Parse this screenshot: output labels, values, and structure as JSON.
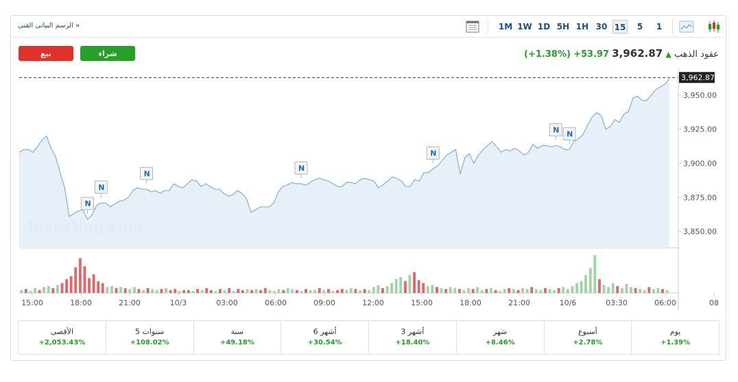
{
  "toolbar": {
    "tech_chart_link": "الرسم البيانى الفنى",
    "timeframes": [
      "1",
      "5",
      "15",
      "30",
      "1H",
      "5H",
      "1D",
      "1W",
      "1M"
    ],
    "active_timeframe": "15",
    "icons": [
      "candlestick-icon",
      "area-chart-icon",
      "table-icon"
    ]
  },
  "actions": {
    "sell_label": "بيع",
    "buy_label": "شراء"
  },
  "quote": {
    "name": "عقود الذهب",
    "direction": "up",
    "price": "3,962.87",
    "change": "+53.97",
    "change_pct": "(+1.38%)"
  },
  "colors": {
    "up": "#26a128",
    "down": "#e0312b",
    "accent": "#1a4f8a",
    "line": "#86aed6"
  },
  "chart_data": {
    "type": "area",
    "y_ticks": [
      "3,950.00",
      "3,925.00",
      "3,900.00",
      "3,875.00",
      "3,850.00"
    ],
    "ylim": [
      3838,
      3970
    ],
    "current_price_label": "3,962.87",
    "x_tick_labels": [
      "15:00",
      "18:00",
      "21:00",
      "10/3",
      "03:00",
      "06:00",
      "09:00",
      "12:00",
      "15:00",
      "18:00",
      "21:00",
      "10/6",
      "03:30",
      "06:00",
      "08"
    ],
    "watermark": "Investing.com",
    "news_marker": "N",
    "series": [
      {
        "values": [
          3908,
          3910,
          3910,
          3908,
          3912,
          3917,
          3920,
          3911,
          3905,
          3893,
          3882,
          3861,
          3863,
          3865,
          3866,
          3859,
          3862,
          3869,
          3871,
          3871,
          3868,
          3870,
          3872,
          3873,
          3875,
          3880,
          3882,
          3881,
          3881,
          3879,
          3880,
          3878,
          3880,
          3880,
          3885,
          3883,
          3882,
          3885,
          3888,
          3887,
          3883,
          3885,
          3883,
          3881,
          3881,
          3878,
          3876,
          3877,
          3880,
          3878,
          3874,
          3864,
          3866,
          3868,
          3868,
          3868,
          3871,
          3879,
          3883,
          3884,
          3886,
          3885,
          3885,
          3884,
          3886,
          3888,
          3889,
          3888,
          3887,
          3885,
          3883,
          3883,
          3886,
          3886,
          3885,
          3888,
          3889,
          3888,
          3887,
          3882,
          3884,
          3887,
          3890,
          3889,
          3887,
          3883,
          3883,
          3888,
          3887,
          3893,
          3893,
          3896,
          3898,
          3902,
          3906,
          3908,
          3910,
          3892,
          3904,
          3907,
          3900,
          3906,
          3910,
          3913,
          3916,
          3912,
          3908,
          3910,
          3909,
          3911,
          3909,
          3906,
          3908,
          3914,
          3911,
          3913,
          3913,
          3912,
          3913,
          3912,
          3910,
          3910,
          3916,
          3918,
          3921,
          3928,
          3934,
          3937,
          3935,
          3925,
          3927,
          3932,
          3930,
          3936,
          3938,
          3948,
          3949,
          3946,
          3946,
          3950,
          3954,
          3956,
          3958,
          3962
        ]
      }
    ],
    "volume": {
      "values": [
        3,
        4,
        2,
        5,
        3,
        6,
        7,
        5,
        8,
        10,
        14,
        17,
        26,
        35,
        27,
        15,
        19,
        12,
        10,
        6,
        7,
        5,
        6,
        5,
        4,
        6,
        4,
        3,
        5,
        4,
        3,
        4,
        5,
        3,
        4,
        2,
        3,
        3,
        2,
        4,
        3,
        5,
        3,
        2,
        4,
        3,
        5,
        2,
        4,
        3,
        4,
        3,
        4,
        3,
        5,
        3,
        2,
        4,
        3,
        5,
        4,
        3,
        2,
        4,
        3,
        3,
        5,
        3,
        4,
        2,
        3,
        4,
        3,
        5,
        4,
        3,
        4,
        3,
        6,
        8,
        5,
        7,
        10,
        14,
        16,
        12,
        18,
        21,
        13,
        10,
        7,
        8,
        6,
        5,
        4,
        6,
        5,
        4,
        3,
        5,
        4,
        6,
        3,
        4,
        5,
        3,
        2,
        4,
        5,
        4,
        3,
        5,
        4,
        6,
        4,
        3,
        5,
        4,
        3,
        5,
        6,
        4,
        7,
        10,
        12,
        18,
        25,
        38,
        14,
        8,
        6,
        10,
        7,
        5,
        9,
        6,
        5,
        4,
        3,
        6,
        4,
        5,
        4,
        3
      ],
      "up": [
        1,
        0,
        1,
        1,
        0,
        1,
        1,
        0,
        1,
        0,
        0,
        0,
        0,
        0,
        0,
        0,
        0,
        0,
        0,
        1,
        1,
        0,
        1,
        0,
        1,
        1,
        0,
        1,
        0,
        1,
        1,
        0,
        1,
        0,
        0,
        1,
        0,
        0,
        1,
        0,
        1,
        0,
        0,
        1,
        0,
        1,
        0,
        1,
        0,
        0,
        1,
        0,
        1,
        0,
        0,
        1,
        1,
        1,
        0,
        1,
        1,
        0,
        1,
        0,
        1,
        1,
        0,
        1,
        0,
        1,
        0,
        0,
        1,
        1,
        0,
        1,
        0,
        1,
        1,
        1,
        0,
        1,
        1,
        1,
        1,
        0,
        1,
        0,
        0,
        0,
        1,
        1,
        0,
        1,
        0,
        1,
        1,
        0,
        1,
        1,
        0,
        1,
        1,
        0,
        1,
        0,
        1,
        1,
        0,
        1,
        0,
        1,
        1,
        0,
        1,
        1,
        0,
        1,
        1,
        0,
        1,
        1,
        1,
        1,
        1,
        1,
        1,
        1,
        0,
        1,
        1,
        1,
        0,
        1,
        1,
        1,
        0,
        1,
        1,
        0,
        1,
        1,
        0,
        1
      ]
    }
  },
  "performance": [
    {
      "label": "يوم",
      "value": "+1.39%"
    },
    {
      "label": "أسبوع",
      "value": "+2.78%"
    },
    {
      "label": "شهر",
      "value": "+8.46%"
    },
    {
      "label": "3 أشهر",
      "value": "+18.40%"
    },
    {
      "label": "6 أشهر",
      "value": "+30.54%"
    },
    {
      "label": "سنة",
      "value": "+49.18%"
    },
    {
      "label": "5 سنوات",
      "value": "+108.02%"
    },
    {
      "label": "الأقصى",
      "value": "+2,053.43%"
    }
  ]
}
